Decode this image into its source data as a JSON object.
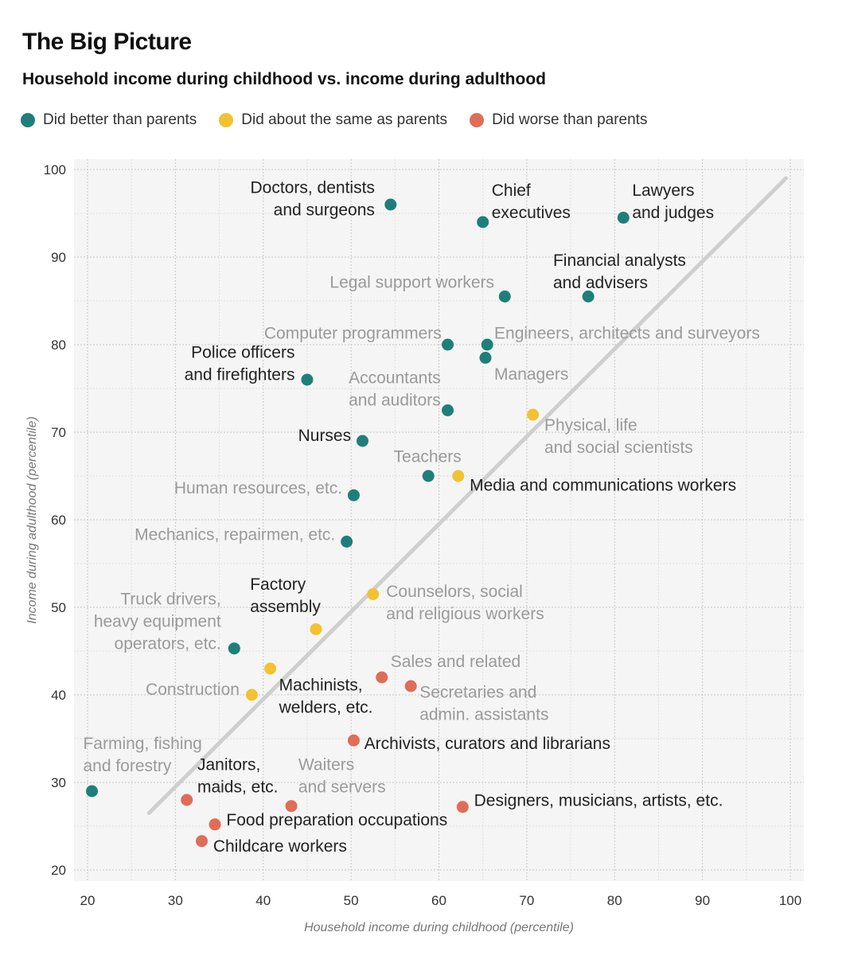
{
  "page": {
    "title": "The Big Picture",
    "subtitle": "Household income during childhood vs. income during adulthood"
  },
  "legend": [
    {
      "key": "better",
      "label": "Did better than parents",
      "color": "#1e7f7a"
    },
    {
      "key": "same",
      "label": "Did about the same as parents",
      "color": "#f2c230"
    },
    {
      "key": "worse",
      "label": "Did worse than parents",
      "color": "#e06d57"
    }
  ],
  "chart_data": {
    "type": "scatter",
    "title": "The Big Picture",
    "subtitle": "Household income during childhood vs. income during adulthood",
    "xlabel": "Household income during childhood (percentile)",
    "ylabel": "Income during adulthood (percentile)",
    "xlim": [
      20,
      100
    ],
    "ylim": [
      20,
      100
    ],
    "xticks": [
      20,
      30,
      40,
      50,
      60,
      70,
      80,
      90,
      100
    ],
    "yticks": [
      20,
      30,
      40,
      50,
      60,
      70,
      80,
      90,
      100
    ],
    "grid": true,
    "reference_line": {
      "from": [
        27,
        26.5
      ],
      "to": [
        99.5,
        99
      ]
    },
    "points": [
      {
        "label": "Doctors, dentists and surgeons",
        "lines": [
          "Doctors, dentists",
          "and surgeons"
        ],
        "x": 54.5,
        "y": 96,
        "group": "better",
        "tone": "dark",
        "anchor": "end",
        "lx": 52.7,
        "ly": 97.3
      },
      {
        "label": "Chief executives",
        "lines": [
          "Chief",
          "executives"
        ],
        "x": 65,
        "y": 94,
        "group": "better",
        "tone": "dark",
        "anchor": "start",
        "lx": 66,
        "ly": 97
      },
      {
        "label": "Lawyers and judges",
        "lines": [
          "Lawyers",
          "and judges"
        ],
        "x": 81,
        "y": 94.5,
        "group": "better",
        "tone": "dark",
        "anchor": "start",
        "lx": 82,
        "ly": 97
      },
      {
        "label": "Financial analysts and advisers",
        "lines": [
          "Financial analysts",
          "and advisers"
        ],
        "x": 77,
        "y": 85.5,
        "group": "better",
        "tone": "dark",
        "anchor": "start",
        "lx": 73,
        "ly": 89
      },
      {
        "label": "Legal support workers",
        "lines": [
          "Legal support workers"
        ],
        "x": 67.5,
        "y": 85.5,
        "group": "better",
        "tone": "gray",
        "anchor": "end",
        "lx": 66.3,
        "ly": 86.5
      },
      {
        "label": "Computer programmers",
        "lines": [
          "Computer programmers"
        ],
        "x": 61,
        "y": 80,
        "group": "better",
        "tone": "gray",
        "anchor": "end",
        "lx": 60.3,
        "ly": 80.7
      },
      {
        "label": "Engineers, architects and surveyors",
        "lines": [
          "Engineers, architects and surveyors"
        ],
        "x": 65.5,
        "y": 80,
        "group": "better",
        "tone": "gray",
        "anchor": "start",
        "lx": 66.3,
        "ly": 80.7
      },
      {
        "label": "Managers",
        "lines": [
          "Managers"
        ],
        "x": 65.3,
        "y": 78.5,
        "group": "better",
        "tone": "gray",
        "anchor": "start",
        "lx": 66.3,
        "ly": 76
      },
      {
        "label": "Police officers and firefighters",
        "lines": [
          "Police officers",
          "and firefighters"
        ],
        "x": 45,
        "y": 76,
        "group": "better",
        "tone": "dark",
        "anchor": "end",
        "lx": 43.6,
        "ly": 78.5
      },
      {
        "label": "Accountants and auditors",
        "lines": [
          "Accountants",
          "and auditors"
        ],
        "x": 61,
        "y": 72.5,
        "group": "better",
        "tone": "gray",
        "anchor": "end",
        "lx": 60.2,
        "ly": 75.6
      },
      {
        "label": "Nurses",
        "lines": [
          "Nurses"
        ],
        "x": 51.3,
        "y": 69,
        "group": "better",
        "tone": "dark",
        "anchor": "end",
        "lx": 50,
        "ly": 69
      },
      {
        "label": "Teachers",
        "lines": [
          "Teachers"
        ],
        "x": 58.8,
        "y": 65,
        "group": "better",
        "tone": "gray",
        "anchor": "middle",
        "lx": 58.7,
        "ly": 66.6
      },
      {
        "label": "Human resources, etc.",
        "lines": [
          "Human resources, etc."
        ],
        "x": 50.3,
        "y": 62.8,
        "group": "better",
        "tone": "gray",
        "anchor": "end",
        "lx": 49,
        "ly": 63
      },
      {
        "label": "Mechanics, repairmen, etc.",
        "lines": [
          "Mechanics, repairmen, etc."
        ],
        "x": 49.5,
        "y": 57.5,
        "group": "better",
        "tone": "gray",
        "anchor": "end",
        "lx": 48.2,
        "ly": 57.7
      },
      {
        "label": "Truck drivers, heavy equipment operators, etc.",
        "lines": [
          "Truck drivers,",
          "heavy equipment",
          "operators, etc."
        ],
        "x": 36.7,
        "y": 45.3,
        "group": "better",
        "tone": "gray",
        "anchor": "end",
        "lx": 35.2,
        "ly": 50.3
      },
      {
        "label": "Farming, fishing and forestry",
        "lines": [
          "Farming, fishing",
          "and forestry"
        ],
        "x": 20.5,
        "y": 29,
        "group": "better",
        "tone": "gray",
        "anchor": "start",
        "lx": 19.5,
        "ly": 33.8
      },
      {
        "label": "Physical, life and social scientists",
        "lines": [
          "Physical, life",
          "and social scientists"
        ],
        "x": 70.7,
        "y": 72,
        "group": "same",
        "tone": "gray",
        "anchor": "start",
        "lx": 72,
        "ly": 70.2
      },
      {
        "label": "Media and communications workers",
        "lines": [
          "Media and communications workers"
        ],
        "x": 62.2,
        "y": 65,
        "group": "same",
        "tone": "dark",
        "anchor": "start",
        "lx": 63.5,
        "ly": 63.3
      },
      {
        "label": "Counselors, social and religious workers",
        "lines": [
          "Counselors, social",
          "and religious workers"
        ],
        "x": 52.5,
        "y": 51.5,
        "group": "same",
        "tone": "gray",
        "anchor": "start",
        "lx": 54,
        "ly": 51.2
      },
      {
        "label": "Factory assembly",
        "lines": [
          "Factory",
          "assembly"
        ],
        "x": 46,
        "y": 47.5,
        "group": "same",
        "tone": "dark",
        "anchor": "start",
        "lx": 38.5,
        "ly": 52
      },
      {
        "label": "Machinists, welders, etc.",
        "lines": [
          "Machinists,",
          "welders, etc."
        ],
        "x": 40.8,
        "y": 43,
        "group": "same",
        "tone": "dark",
        "anchor": "start",
        "lx": 41.8,
        "ly": 40.5
      },
      {
        "label": "Construction",
        "lines": [
          "Construction"
        ],
        "x": 38.7,
        "y": 40,
        "group": "same",
        "tone": "gray",
        "anchor": "end",
        "lx": 37.3,
        "ly": 40
      },
      {
        "label": "Sales and related",
        "lines": [
          "Sales and related"
        ],
        "x": 53.5,
        "y": 42,
        "group": "worse",
        "tone": "gray",
        "anchor": "start",
        "lx": 54.5,
        "ly": 43.2
      },
      {
        "label": "Secretaries and admin. assistants",
        "lines": [
          "Secretaries and",
          "admin. assistants"
        ],
        "x": 56.8,
        "y": 41,
        "group": "worse",
        "tone": "gray",
        "anchor": "start",
        "lx": 57.8,
        "ly": 39.7
      },
      {
        "label": "Archivists, curators and librarians",
        "lines": [
          "Archivists, curators and librarians"
        ],
        "x": 50.3,
        "y": 34.8,
        "group": "worse",
        "tone": "dark",
        "anchor": "start",
        "lx": 51.5,
        "ly": 33.8
      },
      {
        "label": "Janitors, maids, etc.",
        "lines": [
          "Janitors,",
          "maids, etc."
        ],
        "x": 31.3,
        "y": 28,
        "group": "worse",
        "tone": "dark",
        "anchor": "start",
        "lx": 32.5,
        "ly": 31.4
      },
      {
        "label": "Waiters and servers",
        "lines": [
          "Waiters",
          "and servers"
        ],
        "x": 43.2,
        "y": 27.3,
        "group": "worse",
        "tone": "gray",
        "anchor": "start",
        "lx": 44,
        "ly": 31.4
      },
      {
        "label": "Designers, musicians, artists, etc.",
        "lines": [
          "Designers, musicians, artists, etc."
        ],
        "x": 62.7,
        "y": 27.2,
        "group": "worse",
        "tone": "dark",
        "anchor": "start",
        "lx": 64,
        "ly": 27.3
      },
      {
        "label": "Food preparation occupations",
        "lines": [
          "Food preparation occupations"
        ],
        "x": 34.5,
        "y": 25.2,
        "group": "worse",
        "tone": "dark",
        "anchor": "start",
        "lx": 35.8,
        "ly": 25.1
      },
      {
        "label": "Childcare workers",
        "lines": [
          "Childcare workers"
        ],
        "x": 33,
        "y": 23.3,
        "group": "worse",
        "tone": "dark",
        "anchor": "start",
        "lx": 34.3,
        "ly": 22.1
      }
    ]
  }
}
